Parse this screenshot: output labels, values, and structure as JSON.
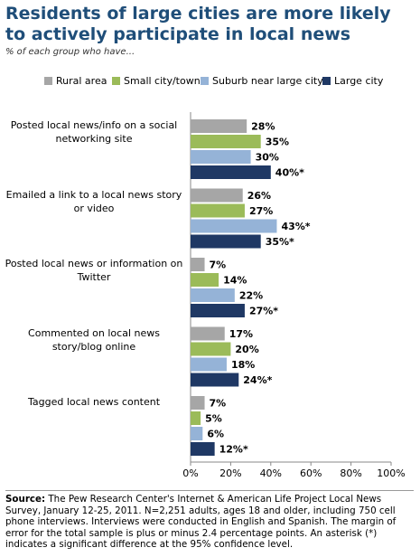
{
  "chart_data": {
    "type": "bar",
    "orientation": "horizontal",
    "title": "Residents of large cities are more likely to actively participate in local news",
    "subtitle": "% of each group who have...",
    "categories": [
      "Posted local news/info on a social networking site",
      "Emailed a link to a local news story or video",
      "Posted local news or information on Twitter",
      "Commented on local news story/blog online",
      "Tagged local news content"
    ],
    "series": [
      {
        "name": "Rural area",
        "color": "#a6a6a6",
        "values": [
          28,
          26,
          7,
          17,
          7
        ],
        "value_labels": [
          "28%",
          "26%",
          "7%",
          "17%",
          "7%"
        ]
      },
      {
        "name": "Small city/town",
        "color": "#9bbb59",
        "values": [
          35,
          27,
          14,
          20,
          5
        ],
        "value_labels": [
          "35%",
          "27%",
          "14%",
          "20%",
          "5%"
        ]
      },
      {
        "name": "Suburb near large city",
        "color": "#95b3d7",
        "values": [
          30,
          43,
          22,
          18,
          6
        ],
        "value_labels": [
          "30%",
          "43%*",
          "22%",
          "18%",
          "6%"
        ]
      },
      {
        "name": "Large city",
        "color": "#1f3864",
        "values": [
          40,
          35,
          27,
          24,
          12
        ],
        "value_labels": [
          "40%*",
          "35%*",
          "27%*",
          "24%*",
          "12%*"
        ]
      }
    ],
    "xlim": [
      0,
      100
    ],
    "xticks": [
      {
        "value": 0,
        "label": "0%"
      },
      {
        "value": 20,
        "label": "20%"
      },
      {
        "value": 40,
        "label": "40%"
      },
      {
        "value": 60,
        "label": "60%"
      },
      {
        "value": 80,
        "label": "80%"
      },
      {
        "value": 100,
        "label": "100%"
      }
    ],
    "source_label": "Source:",
    "source": "The Pew Research Center's Internet & American Life Project Local News Survey, January 12-25, 2011. N=2,251 adults, ages 18 and older, including 750 cell phone interviews. Interviews were conducted in English and Spanish. The margin of error for the total sample is plus or minus 2.4 percentage points.  An asterisk (*) indicates a significant difference at the 95% confidence level."
  }
}
